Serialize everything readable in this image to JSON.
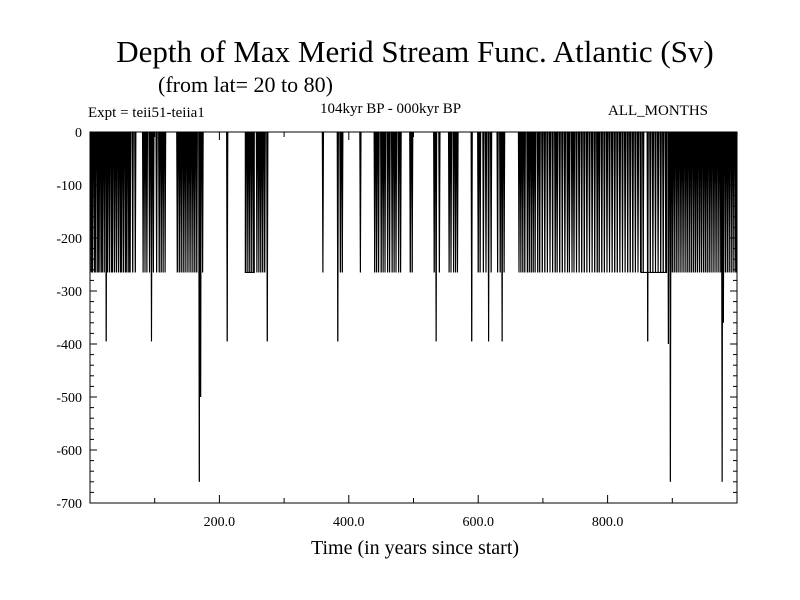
{
  "chart_data": {
    "type": "line",
    "title": "Depth of Max Merid Stream Func. Atlantic (Sv)",
    "subtitle": "(from lat= 20 to 80)",
    "annotations": {
      "experiment": "Expt = teii51-teiia1",
      "period": "104kyr BP - 000kyr BP",
      "months": "ALL_MONTHS"
    },
    "xlabel": "Time (in years since start)",
    "ylabel": "",
    "xlim": [
      0,
      1000
    ],
    "ylim": [
      -700,
      0
    ],
    "xticks": [
      200,
      400,
      600,
      800
    ],
    "xtick_labels": [
      "200.0",
      "400.0",
      "600.0",
      "800.0"
    ],
    "yticks": [
      0,
      -100,
      -200,
      -300,
      -400,
      -500,
      -600,
      -700
    ],
    "ytick_labels": [
      "0",
      "-100",
      "-200",
      "-300",
      "-400",
      "-500",
      "-600",
      "-700"
    ],
    "grid": false,
    "series": [
      {
        "spikes": [
          [
            2,
            -265
          ],
          [
            4,
            -265
          ],
          [
            7,
            -265
          ],
          [
            9,
            -265
          ],
          [
            12,
            -265
          ],
          [
            14,
            -265
          ],
          [
            17,
            -265
          ],
          [
            19,
            -265
          ],
          [
            22,
            -265
          ],
          [
            25,
            -395
          ],
          [
            27,
            -265
          ],
          [
            30,
            -265
          ],
          [
            33,
            -265
          ],
          [
            35,
            -265
          ],
          [
            38,
            -265
          ],
          [
            41,
            -265
          ],
          [
            44,
            -265
          ],
          [
            47,
            -265
          ],
          [
            49,
            -265
          ],
          [
            52,
            -265
          ],
          [
            55,
            -265
          ],
          [
            57,
            -265
          ],
          [
            60,
            -265
          ],
          [
            62,
            -265
          ],
          [
            66,
            -265
          ],
          [
            70,
            -265
          ],
          [
            82,
            -265
          ],
          [
            85,
            -265
          ],
          [
            88,
            -265
          ],
          [
            92,
            -265
          ],
          [
            95,
            -395
          ],
          [
            98,
            -265
          ],
          [
            103,
            -265
          ],
          [
            107,
            -265
          ],
          [
            110,
            -265
          ],
          [
            113,
            -265
          ],
          [
            116,
            -265
          ],
          [
            135,
            -265
          ],
          [
            138,
            -265
          ],
          [
            141,
            -265
          ],
          [
            144,
            -265
          ],
          [
            147,
            -265
          ],
          [
            150,
            -265
          ],
          [
            153,
            -265
          ],
          [
            156,
            -265
          ],
          [
            159,
            -265
          ],
          [
            162,
            -265
          ],
          [
            165,
            -265
          ],
          [
            169,
            -660
          ],
          [
            171,
            -500
          ],
          [
            174,
            -265
          ],
          [
            212,
            -395
          ],
          [
            241,
            -265
          ],
          [
            244,
            -265
          ],
          [
            247,
            -265
          ],
          [
            250,
            -265
          ],
          [
            253,
            -265
          ],
          [
            258,
            -265
          ],
          [
            261,
            -265
          ],
          [
            264,
            -265
          ],
          [
            267,
            -265
          ],
          [
            270,
            -265
          ],
          [
            274,
            -395
          ],
          [
            360,
            -265
          ],
          [
            383,
            -395
          ],
          [
            387,
            -265
          ],
          [
            390,
            -265
          ],
          [
            418,
            -265
          ],
          [
            440,
            -265
          ],
          [
            443,
            -265
          ],
          [
            446,
            -265
          ],
          [
            450,
            -265
          ],
          [
            453,
            -265
          ],
          [
            456,
            -265
          ],
          [
            460,
            -265
          ],
          [
            463,
            -265
          ],
          [
            467,
            -265
          ],
          [
            470,
            -265
          ],
          [
            473,
            -265
          ],
          [
            477,
            -265
          ],
          [
            480,
            -265
          ],
          [
            495,
            -265
          ],
          [
            498,
            -265
          ],
          [
            532,
            -265
          ],
          [
            535,
            -395
          ],
          [
            540,
            -265
          ],
          [
            555,
            -265
          ],
          [
            558,
            -265
          ],
          [
            562,
            -265
          ],
          [
            565,
            -265
          ],
          [
            568,
            -265
          ],
          [
            590,
            -395
          ],
          [
            600,
            -265
          ],
          [
            603,
            -265
          ],
          [
            608,
            -265
          ],
          [
            612,
            -265
          ],
          [
            616,
            -395
          ],
          [
            620,
            -265
          ],
          [
            630,
            -265
          ],
          [
            634,
            -265
          ],
          [
            637,
            -395
          ],
          [
            640,
            -265
          ],
          [
            663,
            -265
          ],
          [
            666,
            -265
          ],
          [
            669,
            -265
          ],
          [
            672,
            -265
          ],
          [
            676,
            -265
          ],
          [
            679,
            -265
          ],
          [
            682,
            -265
          ],
          [
            685,
            -265
          ],
          [
            688,
            -265
          ],
          [
            692,
            -265
          ],
          [
            695,
            -265
          ],
          [
            699,
            -265
          ],
          [
            703,
            -265
          ],
          [
            707,
            -265
          ],
          [
            711,
            -265
          ],
          [
            715,
            -265
          ],
          [
            719,
            -265
          ],
          [
            722,
            -265
          ],
          [
            726,
            -265
          ],
          [
            730,
            -265
          ],
          [
            734,
            -265
          ],
          [
            738,
            -265
          ],
          [
            741,
            -265
          ],
          [
            745,
            -265
          ],
          [
            748,
            -265
          ],
          [
            752,
            -265
          ],
          [
            756,
            -265
          ],
          [
            760,
            -265
          ],
          [
            764,
            -265
          ],
          [
            768,
            -265
          ],
          [
            772,
            -265
          ],
          [
            776,
            -265
          ],
          [
            780,
            -265
          ],
          [
            784,
            -265
          ],
          [
            787,
            -265
          ],
          [
            791,
            -265
          ],
          [
            795,
            -265
          ],
          [
            799,
            -265
          ],
          [
            803,
            -265
          ],
          [
            807,
            -265
          ],
          [
            811,
            -265
          ],
          [
            815,
            -265
          ],
          [
            819,
            -265
          ],
          [
            823,
            -265
          ],
          [
            827,
            -265
          ],
          [
            831,
            -265
          ],
          [
            835,
            -265
          ],
          [
            839,
            -265
          ],
          [
            843,
            -265
          ],
          [
            847,
            -265
          ],
          [
            851,
            -265
          ],
          [
            855,
            -265
          ],
          [
            862,
            -395
          ],
          [
            866,
            -265
          ],
          [
            870,
            -265
          ],
          [
            874,
            -265
          ],
          [
            878,
            -265
          ],
          [
            882,
            -265
          ],
          [
            886,
            -265
          ],
          [
            890,
            -265
          ],
          [
            894,
            -400
          ],
          [
            897,
            -660
          ],
          [
            900,
            -265
          ],
          [
            903,
            -265
          ],
          [
            906,
            -265
          ],
          [
            909,
            -265
          ],
          [
            912,
            -265
          ],
          [
            915,
            -265
          ],
          [
            918,
            -265
          ],
          [
            921,
            -265
          ],
          [
            924,
            -265
          ],
          [
            927,
            -265
          ],
          [
            930,
            -265
          ],
          [
            933,
            -265
          ],
          [
            936,
            -265
          ],
          [
            939,
            -265
          ],
          [
            942,
            -265
          ],
          [
            945,
            -265
          ],
          [
            948,
            -265
          ],
          [
            951,
            -265
          ],
          [
            954,
            -265
          ],
          [
            957,
            -265
          ],
          [
            960,
            -265
          ],
          [
            963,
            -265
          ],
          [
            966,
            -265
          ],
          [
            969,
            -265
          ],
          [
            972,
            -265
          ],
          [
            975,
            -265
          ],
          [
            977,
            -660
          ],
          [
            979,
            -360
          ],
          [
            982,
            -265
          ],
          [
            985,
            -265
          ],
          [
            988,
            -265
          ],
          [
            991,
            -265
          ],
          [
            994,
            -265
          ],
          [
            997,
            -265
          ],
          [
            999,
            -265
          ]
        ],
        "plateaus": [
          [
            240,
            254,
            -265
          ],
          [
            852,
            891,
            -265
          ]
        ]
      }
    ]
  }
}
